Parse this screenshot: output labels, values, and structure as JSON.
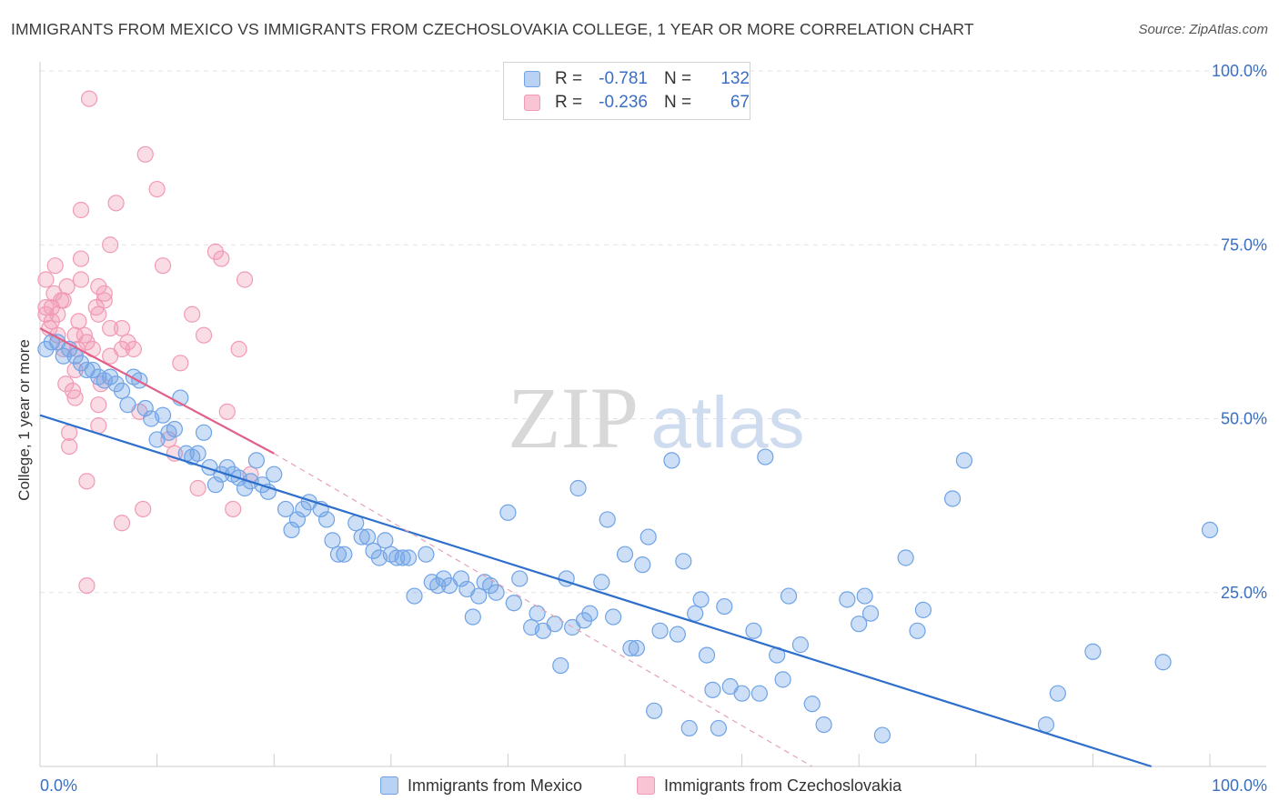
{
  "header": {
    "title": "IMMIGRANTS FROM MEXICO VS IMMIGRANTS FROM CZECHOSLOVAKIA COLLEGE, 1 YEAR OR MORE CORRELATION CHART",
    "source": "Source: ZipAtlas.com"
  },
  "watermark": {
    "part1": "ZIP",
    "part2": "atlas"
  },
  "legend": {
    "r_label": "R =",
    "n_label": "N =",
    "rows": [
      {
        "r": "-0.781",
        "n": "132"
      },
      {
        "r": "-0.236",
        "n": "67"
      }
    ]
  },
  "bottom_legend": {
    "items": [
      {
        "label": "Immigrants from Mexico"
      },
      {
        "label": "Immigrants from Czechoslovakia"
      }
    ]
  },
  "chart_data": {
    "type": "scatter",
    "title": "IMMIGRANTS FROM MEXICO VS IMMIGRANTS FROM CZECHOSLOVAKIA COLLEGE, 1 YEAR OR MORE CORRELATION CHART",
    "ylabel": "College, 1 year or more",
    "xlabel": "",
    "xlim": [
      0,
      100
    ],
    "ylim": [
      0,
      100
    ],
    "x_tick_labels": [
      {
        "value": 0,
        "label": "0.0%"
      },
      {
        "value": 100,
        "label": "100.0%"
      }
    ],
    "y_tick_labels": [
      {
        "value": 25,
        "label": "25.0%"
      },
      {
        "value": 50,
        "label": "50.0%"
      },
      {
        "value": 75,
        "label": "75.0%"
      },
      {
        "value": 100,
        "label": "100.0%"
      }
    ],
    "grid": true,
    "legend_position": "top-center",
    "colors": {
      "mexico": "#6fa3e6",
      "mexico_line": "#2f6fcc",
      "czech": "#f19ab5",
      "czech_line": "#e0608a"
    },
    "series": [
      {
        "name": "Immigrants from Mexico",
        "color": "#6fa3e6",
        "points": [
          [
            0.5,
            60
          ],
          [
            1,
            61
          ],
          [
            1.5,
            61
          ],
          [
            2,
            59
          ],
          [
            2.5,
            60
          ],
          [
            3,
            59
          ],
          [
            3.5,
            58
          ],
          [
            4,
            57
          ],
          [
            4.5,
            57
          ],
          [
            5,
            56
          ],
          [
            5.5,
            55.5
          ],
          [
            6,
            56
          ],
          [
            6.5,
            55
          ],
          [
            7,
            54
          ],
          [
            7.5,
            52
          ],
          [
            8,
            56
          ],
          [
            8.5,
            55.5
          ],
          [
            9,
            51.5
          ],
          [
            9.5,
            50
          ],
          [
            10,
            47
          ],
          [
            10.5,
            50.5
          ],
          [
            11,
            48
          ],
          [
            11.5,
            48.5
          ],
          [
            12,
            53
          ],
          [
            12.5,
            45
          ],
          [
            13,
            44.5
          ],
          [
            13.5,
            45
          ],
          [
            14,
            48
          ],
          [
            14.5,
            43
          ],
          [
            15,
            40.5
          ],
          [
            15.5,
            42
          ],
          [
            16,
            43
          ],
          [
            16.5,
            42
          ],
          [
            17,
            41.5
          ],
          [
            17.5,
            40
          ],
          [
            18,
            41
          ],
          [
            18.5,
            44
          ],
          [
            19,
            40.5
          ],
          [
            19.5,
            39.5
          ],
          [
            20,
            42
          ],
          [
            21,
            37
          ],
          [
            21.5,
            34
          ],
          [
            22,
            35.5
          ],
          [
            22.5,
            37
          ],
          [
            23,
            38
          ],
          [
            24,
            37
          ],
          [
            24.5,
            35.5
          ],
          [
            25,
            32.5
          ],
          [
            25.5,
            30.5
          ],
          [
            26,
            30.5
          ],
          [
            27,
            35
          ],
          [
            27.5,
            33
          ],
          [
            28,
            33
          ],
          [
            28.5,
            31
          ],
          [
            29,
            30
          ],
          [
            29.5,
            32.5
          ],
          [
            30,
            30.5
          ],
          [
            30.5,
            30
          ],
          [
            31,
            30
          ],
          [
            31.5,
            30
          ],
          [
            32,
            24.5
          ],
          [
            33,
            30.5
          ],
          [
            33.5,
            26.5
          ],
          [
            34,
            26
          ],
          [
            34.5,
            27
          ],
          [
            35,
            26
          ],
          [
            36,
            27
          ],
          [
            36.5,
            25.5
          ],
          [
            37,
            21.5
          ],
          [
            37.5,
            24.5
          ],
          [
            38,
            26.5
          ],
          [
            38.5,
            26
          ],
          [
            39,
            25
          ],
          [
            40,
            36.5
          ],
          [
            40.5,
            23.5
          ],
          [
            41,
            27
          ],
          [
            42,
            20
          ],
          [
            42.5,
            22
          ],
          [
            43,
            19.5
          ],
          [
            44,
            20.5
          ],
          [
            44.5,
            14.5
          ],
          [
            45,
            27
          ],
          [
            45.5,
            20
          ],
          [
            46,
            40
          ],
          [
            46.5,
            21
          ],
          [
            47,
            22
          ],
          [
            48,
            26.5
          ],
          [
            48.5,
            35.5
          ],
          [
            49,
            21.5
          ],
          [
            50,
            30.5
          ],
          [
            50.5,
            17
          ],
          [
            51,
            17
          ],
          [
            51.5,
            29
          ],
          [
            52,
            33
          ],
          [
            52.5,
            8
          ],
          [
            53,
            19.5
          ],
          [
            54,
            44
          ],
          [
            54.5,
            19
          ],
          [
            55,
            29.5
          ],
          [
            55.5,
            5.5
          ],
          [
            56,
            22
          ],
          [
            56.5,
            24
          ],
          [
            57,
            16
          ],
          [
            57.5,
            11
          ],
          [
            58,
            5.5
          ],
          [
            58.5,
            23
          ],
          [
            59,
            11.5
          ],
          [
            60,
            10.5
          ],
          [
            61,
            19.5
          ],
          [
            61.5,
            10.5
          ],
          [
            62,
            44.5
          ],
          [
            63,
            16
          ],
          [
            63.5,
            12.5
          ],
          [
            64,
            24.5
          ],
          [
            65,
            17.5
          ],
          [
            66,
            9
          ],
          [
            67,
            6
          ],
          [
            69,
            24
          ],
          [
            70,
            20.5
          ],
          [
            71,
            22
          ],
          [
            72,
            4.5
          ],
          [
            74,
            30
          ],
          [
            75,
            19.5
          ],
          [
            75.5,
            22.5
          ],
          [
            78,
            38.5
          ],
          [
            79,
            44
          ],
          [
            86,
            6
          ],
          [
            87,
            10.5
          ],
          [
            90,
            16.5
          ],
          [
            96,
            15
          ],
          [
            100,
            34
          ],
          [
            70.5,
            24.5
          ]
        ]
      },
      {
        "name": "Immigrants from Czechoslovakia",
        "color": "#f19ab5",
        "points": [
          [
            0.5,
            70
          ],
          [
            0.5,
            66
          ],
          [
            0.5,
            65
          ],
          [
            0.8,
            63
          ],
          [
            1,
            64
          ],
          [
            1,
            66
          ],
          [
            1.2,
            68
          ],
          [
            1.5,
            65
          ],
          [
            1.5,
            62
          ],
          [
            1.8,
            67
          ],
          [
            2,
            67
          ],
          [
            2,
            60
          ],
          [
            2.2,
            55
          ],
          [
            2.5,
            46
          ],
          [
            2.5,
            48
          ],
          [
            2.8,
            54
          ],
          [
            3,
            53
          ],
          [
            3,
            57
          ],
          [
            3,
            62
          ],
          [
            3.2,
            60
          ],
          [
            3.5,
            80
          ],
          [
            3.5,
            73
          ],
          [
            3.5,
            70
          ],
          [
            3.8,
            62
          ],
          [
            4,
            41
          ],
          [
            4,
            26
          ],
          [
            4,
            61
          ],
          [
            4.5,
            60
          ],
          [
            5,
            65
          ],
          [
            5,
            69
          ],
          [
            5,
            52
          ],
          [
            5,
            49
          ],
          [
            5.2,
            55
          ],
          [
            5.5,
            68
          ],
          [
            5.5,
            67
          ],
          [
            6,
            75
          ],
          [
            6,
            63
          ],
          [
            6,
            59
          ],
          [
            6.5,
            81
          ],
          [
            7,
            63
          ],
          [
            7,
            60
          ],
          [
            7,
            35
          ],
          [
            7.5,
            61
          ],
          [
            8,
            60
          ],
          [
            8.5,
            51
          ],
          [
            8.8,
            37
          ],
          [
            9,
            88
          ],
          [
            10,
            83
          ],
          [
            10.5,
            72
          ],
          [
            11,
            47
          ],
          [
            11.5,
            45
          ],
          [
            12,
            58
          ],
          [
            13,
            65
          ],
          [
            13.5,
            40
          ],
          [
            14,
            62
          ],
          [
            15,
            74
          ],
          [
            15.5,
            73
          ],
          [
            16,
            51
          ],
          [
            16.5,
            37
          ],
          [
            17,
            60
          ],
          [
            17.5,
            70
          ],
          [
            4.2,
            96
          ],
          [
            2.3,
            69
          ],
          [
            3.3,
            64
          ],
          [
            4.8,
            66
          ],
          [
            1.3,
            72
          ],
          [
            18,
            42
          ]
        ]
      }
    ],
    "trend_lines": [
      {
        "series": "Immigrants from Mexico",
        "x": [
          0,
          95
        ],
        "y": [
          50.5,
          0
        ]
      },
      {
        "series": "Immigrants from Czechoslovakia",
        "x": [
          0,
          20
        ],
        "y": [
          63,
          45
        ],
        "dashed_extension_to": [
          66,
          0
        ]
      }
    ]
  }
}
